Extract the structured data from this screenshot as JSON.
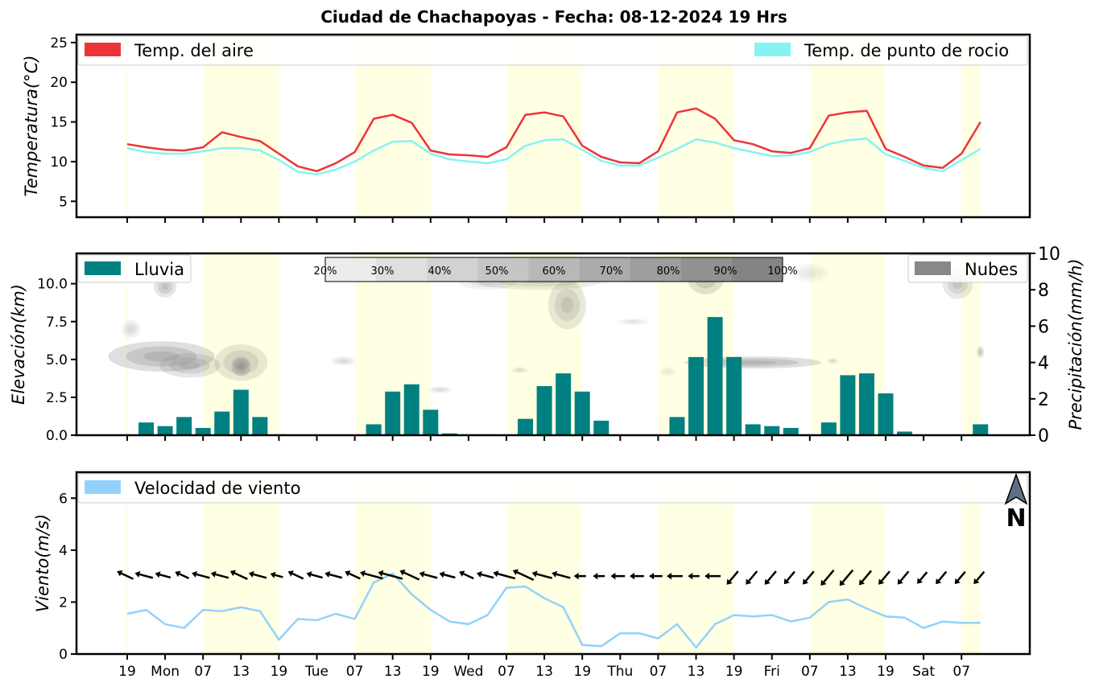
{
  "title": "Ciudad de Chachapoyas   -   Fecha: 08-12-2024 19 Hrs",
  "colors": {
    "temp_air": "#ee3338",
    "temp_dew": "#86f3f3",
    "rain": "#008080",
    "clouds": "#888888",
    "wind": "#92d2fa",
    "day_band": "#ffffe3"
  },
  "icons": {
    "north_arrow": "north-arrow-icon",
    "north_label": "N"
  },
  "x_ticks": [
    "19",
    "Mon",
    "07",
    "13",
    "19",
    "Tue",
    "07",
    "13",
    "19",
    "Wed",
    "07",
    "13",
    "19",
    "Thu",
    "07",
    "13",
    "19",
    "Fri",
    "07",
    "13",
    "19",
    "Sat",
    "07"
  ],
  "chart_data": [
    {
      "type": "line",
      "ylabel": "Temperatura(°C)",
      "ylim": [
        3,
        26
      ],
      "yticks": [
        5,
        10,
        15,
        20,
        25
      ],
      "legend_placement": "top (left and right)",
      "series": [
        {
          "name": "Temp. del aire",
          "values": [
            12.2,
            11.8,
            11.5,
            11.4,
            11.8,
            13.7,
            13.1,
            12.6,
            11.0,
            9.4,
            8.8,
            9.8,
            11.2,
            15.4,
            15.9,
            14.9,
            11.4,
            10.9,
            10.8,
            10.6,
            11.8,
            15.9,
            16.2,
            15.7,
            12.0,
            10.6,
            9.9,
            9.8,
            11.3,
            16.2,
            16.7,
            15.4,
            12.7,
            12.2,
            11.3,
            11.1,
            11.7,
            15.8,
            16.2,
            16.4,
            11.6,
            10.6,
            9.5,
            9.2,
            11.0,
            15.0
          ]
        },
        {
          "name": "Temp. de punto de rocio",
          "values": [
            11.7,
            11.2,
            11.0,
            11.0,
            11.3,
            11.7,
            11.7,
            11.4,
            10.2,
            8.7,
            8.4,
            9.0,
            10.0,
            11.4,
            12.5,
            12.6,
            11.0,
            10.3,
            10.0,
            9.8,
            10.3,
            12.0,
            12.7,
            12.8,
            11.5,
            10.1,
            9.5,
            9.5,
            10.5,
            11.6,
            12.8,
            12.4,
            11.7,
            11.2,
            10.7,
            10.8,
            11.2,
            12.2,
            12.7,
            12.9,
            10.9,
            10.1,
            9.2,
            8.8,
            10.2,
            11.6
          ]
        }
      ]
    },
    {
      "type": "bar",
      "ylabel": "Elevación(km)",
      "ylabel_right": "Precipitación(mm/h)",
      "ylim": [
        0,
        12
      ],
      "yticks": [
        0.0,
        2.5,
        5.0,
        7.5,
        10.0
      ],
      "ylim_right": [
        0,
        10
      ],
      "yticks_right": [
        0,
        2,
        4,
        6,
        8,
        10
      ],
      "colorbar_labels": [
        "20%",
        "30%",
        "40%",
        "50%",
        "60%",
        "70%",
        "80%",
        "90%",
        "100%"
      ],
      "series": [
        {
          "name": "Lluvia",
          "values": [
            0,
            0.7,
            0.5,
            1.0,
            0.4,
            1.3,
            2.5,
            1.0,
            0.05,
            0,
            0,
            0,
            0,
            0.6,
            2.4,
            2.8,
            1.4,
            0.1,
            0.05,
            0.05,
            0,
            0.9,
            2.7,
            3.4,
            2.4,
            0.8,
            0,
            0,
            0,
            1.0,
            4.3,
            6.5,
            4.3,
            0.6,
            0.5,
            0.4,
            0.05,
            0.7,
            3.3,
            3.4,
            2.3,
            0.2,
            0,
            0,
            0,
            0.6
          ]
        },
        {
          "name": "Nubes",
          "values": []
        }
      ]
    },
    {
      "type": "line",
      "ylabel": "Viento(m/s)",
      "ylim": [
        0,
        7
      ],
      "yticks": [
        0,
        2,
        4,
        6
      ],
      "series": [
        {
          "name": "Velocidad de viento",
          "values": [
            1.55,
            1.7,
            1.15,
            1.0,
            1.7,
            1.65,
            1.8,
            1.65,
            0.55,
            1.35,
            1.3,
            1.55,
            1.35,
            2.75,
            3.1,
            2.3,
            1.7,
            1.25,
            1.15,
            1.5,
            2.55,
            2.6,
            2.15,
            1.8,
            0.35,
            0.3,
            0.8,
            0.8,
            0.6,
            1.15,
            0.25,
            1.15,
            1.5,
            1.45,
            1.5,
            1.25,
            1.4,
            2.0,
            2.1,
            1.75,
            1.45,
            1.4,
            1.0,
            1.25,
            1.2,
            1.2
          ]
        }
      ]
    }
  ]
}
